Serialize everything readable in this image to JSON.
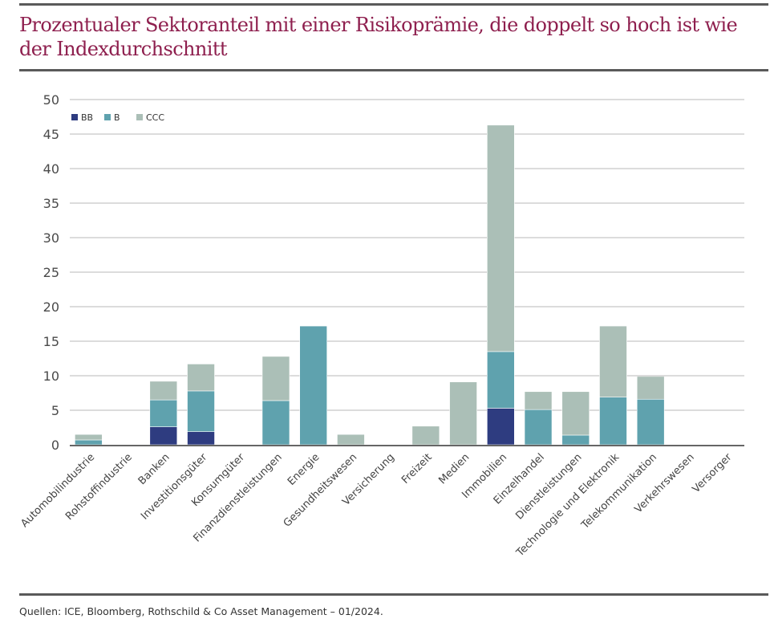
{
  "title": "Prozentualer Sektoranteil mit einer Risikoprämie, die doppelt so hoch ist wie der Indexdurchschnitt",
  "source": "Quellen: ICE, Bloomberg, Rothschild & Co Asset Management – 01/2024.",
  "colors": {
    "title": "#8e1f4e",
    "BB": "#2e3c80",
    "B": "#5fa2ae",
    "CCC": "#abbfb7",
    "grid": "#b8b8b8",
    "axis": "#666666"
  },
  "chart_data": {
    "type": "bar",
    "stacked": true,
    "title": "Prozentualer Sektoranteil mit einer Risikoprämie, die doppelt so hoch ist wie der Indexdurchschnitt",
    "xlabel": "",
    "ylabel": "",
    "ylim": [
      0,
      50
    ],
    "yticks": [
      0,
      5,
      10,
      15,
      20,
      25,
      30,
      35,
      40,
      45,
      50
    ],
    "grid": true,
    "legend_position": "top-left",
    "categories": [
      "Automobilindustrie",
      "Rohstoffindustrie",
      "Banken",
      "Investitionsgüter",
      "Konsumgüter",
      "Finanzdienstleistungen",
      "Energie",
      "Gesundheitswesen",
      "Versicherung",
      "Freizeit",
      "Medien",
      "Immobilien",
      "Einzelhandel",
      "Dienstleistungen",
      "Technologie und Elektronik",
      "Telekommunikation",
      "Verkehrswesen",
      "Versorger"
    ],
    "series": [
      {
        "name": "BB",
        "values": [
          0,
          0,
          2.6,
          1.9,
          0,
          0,
          0,
          0,
          0,
          0,
          0,
          5.3,
          0,
          0,
          0,
          0,
          0,
          0
        ]
      },
      {
        "name": "B",
        "values": [
          0.7,
          0,
          3.9,
          5.9,
          0,
          6.4,
          17.2,
          0,
          0,
          0,
          0,
          8.2,
          5.1,
          1.4,
          6.9,
          6.6,
          0,
          0
        ]
      },
      {
        "name": "CCC",
        "values": [
          0.8,
          0,
          2.7,
          3.9,
          0,
          6.4,
          0,
          1.5,
          0,
          2.7,
          9.1,
          32.8,
          2.6,
          6.3,
          10.3,
          3.3,
          0,
          0
        ]
      }
    ]
  }
}
